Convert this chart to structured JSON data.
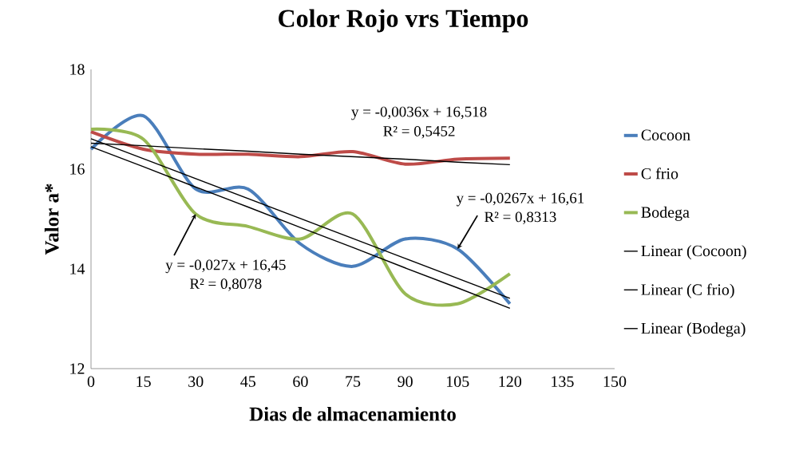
{
  "chart_data": {
    "type": "line",
    "title": "Color Rojo vrs Tiempo",
    "xlabel": "Dias de almacenamiento",
    "ylabel": "Valor  a*",
    "x": [
      0,
      15,
      30,
      45,
      60,
      75,
      90,
      105,
      120
    ],
    "series": [
      {
        "name": "Cocoon",
        "color": "#4a7ebb",
        "values": [
          16.4,
          17.07,
          15.6,
          15.6,
          14.5,
          14.05,
          14.6,
          14.4,
          13.3
        ]
      },
      {
        "name": "C frio",
        "color": "#be4b48",
        "values": [
          16.75,
          16.4,
          16.3,
          16.3,
          16.25,
          16.35,
          16.1,
          16.2,
          16.22
        ]
      },
      {
        "name": "Bodega",
        "color": "#98b954",
        "values": [
          16.8,
          16.6,
          15.1,
          14.85,
          14.6,
          15.1,
          13.5,
          13.3,
          13.9
        ]
      },
      {
        "name": "Linear (Cocoon)",
        "color": "#000000",
        "line_style": "solid",
        "values": [
          16.61,
          16.21,
          15.81,
          15.41,
          15.01,
          14.61,
          14.21,
          13.81,
          13.41
        ]
      },
      {
        "name": "Linear (C frio)",
        "color": "#000000",
        "line_style": "solid",
        "values": [
          16.52,
          16.47,
          16.41,
          16.36,
          16.3,
          16.25,
          16.2,
          16.14,
          16.09
        ]
      },
      {
        "name": "Linear (Bodega)",
        "color": "#000000",
        "line_style": "solid",
        "values": [
          16.45,
          16.05,
          15.64,
          15.24,
          14.83,
          14.43,
          14.02,
          13.62,
          13.21
        ]
      }
    ],
    "xlim": [
      0,
      150
    ],
    "xticks": [
      0,
      15,
      30,
      45,
      60,
      75,
      90,
      105,
      120,
      135,
      150
    ],
    "ylim": [
      12,
      18
    ],
    "yticks": [
      12,
      14,
      16,
      18
    ],
    "grid": false,
    "legend": "right",
    "marker": "none",
    "annotations": [
      "y = -0,0036x + 16,518",
      "R² = 0,5452",
      {
        "text": "y = -0,0267x + 16,61",
        "x": 105,
        "y": 14.4
      },
      "R² = 0,8313",
      {
        "text": "y = -0,027x + 16,45",
        "x": 30,
        "y": 15.1
      },
      "R² = 0,8078"
    ]
  }
}
